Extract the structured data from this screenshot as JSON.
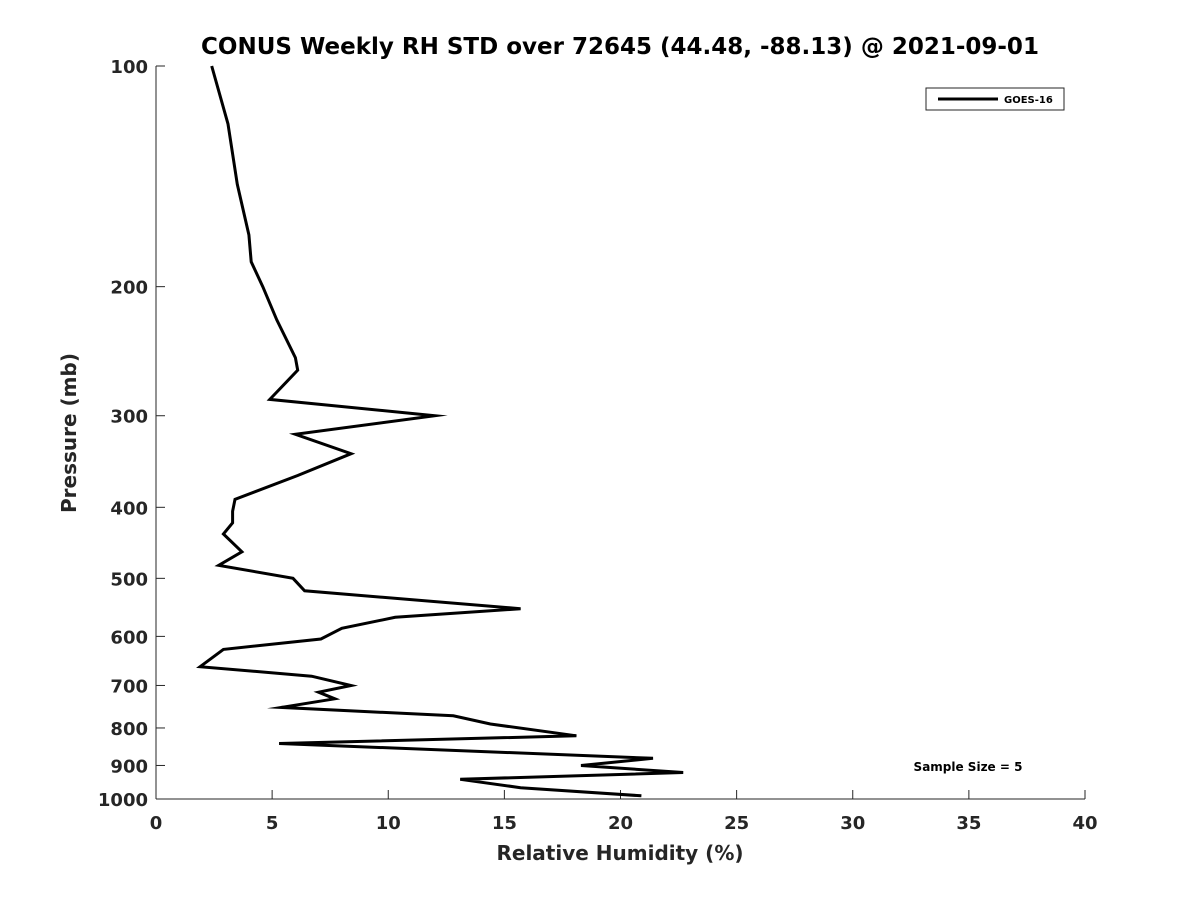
{
  "chart_data": {
    "type": "line",
    "title": "CONUS Weekly RH STD over 72645 (44.48, -88.13) @ 2021-09-01",
    "xlabel": "Relative Humidity (%)",
    "ylabel": "Pressure (mb)",
    "xlim": [
      0,
      40
    ],
    "ylim": [
      100,
      1000
    ],
    "yscale": "log",
    "yreversed": true,
    "xticks": [
      0,
      5,
      10,
      15,
      20,
      25,
      30,
      35,
      40
    ],
    "yticks": [
      100,
      200,
      300,
      400,
      500,
      600,
      700,
      800,
      900,
      1000
    ],
    "grid": false,
    "legend_position": "top-right",
    "annotation": "Sample Size = 5",
    "series": [
      {
        "name": "GOES-16",
        "color": "#000000",
        "x": [
          2.4,
          3.1,
          3.5,
          4.0,
          4.1,
          4.6,
          5.2,
          6.0,
          6.1,
          4.9,
          12.0,
          6.0,
          8.4,
          6.1,
          3.4,
          3.3,
          3.3,
          2.9,
          3.7,
          2.7,
          5.9,
          6.4,
          15.7,
          10.3,
          8.0,
          7.1,
          2.9,
          1.9,
          6.7,
          8.4,
          7.0,
          7.7,
          5.4,
          12.8,
          14.4,
          18.1,
          5.3,
          21.4,
          18.3,
          22.7,
          13.1,
          15.7,
          20.9
        ],
        "y": [
          100,
          120,
          145,
          170,
          185,
          200,
          222,
          250,
          260,
          285,
          300,
          318,
          338,
          362,
          390,
          405,
          420,
          435,
          460,
          480,
          500,
          520,
          550,
          565,
          585,
          605,
          625,
          660,
          680,
          700,
          715,
          730,
          750,
          770,
          790,
          820,
          840,
          880,
          900,
          920,
          940,
          965,
          990
        ]
      }
    ]
  }
}
